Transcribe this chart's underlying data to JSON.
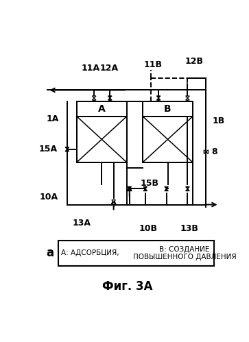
{
  "title": "Фиг. 3А",
  "legend_label": "а",
  "legend_text_A": "А: АДСОРБЦИЯ,",
  "legend_text_B": "В: СОЗДАНИЕ\nПОВЫШЕННОГО ДАВЛЕНИЯ",
  "fig_size": [
    3.63,
    4.99
  ],
  "dpi": 100,
  "background": "#ffffff",
  "lw": 1.4,
  "valve_size": 8
}
